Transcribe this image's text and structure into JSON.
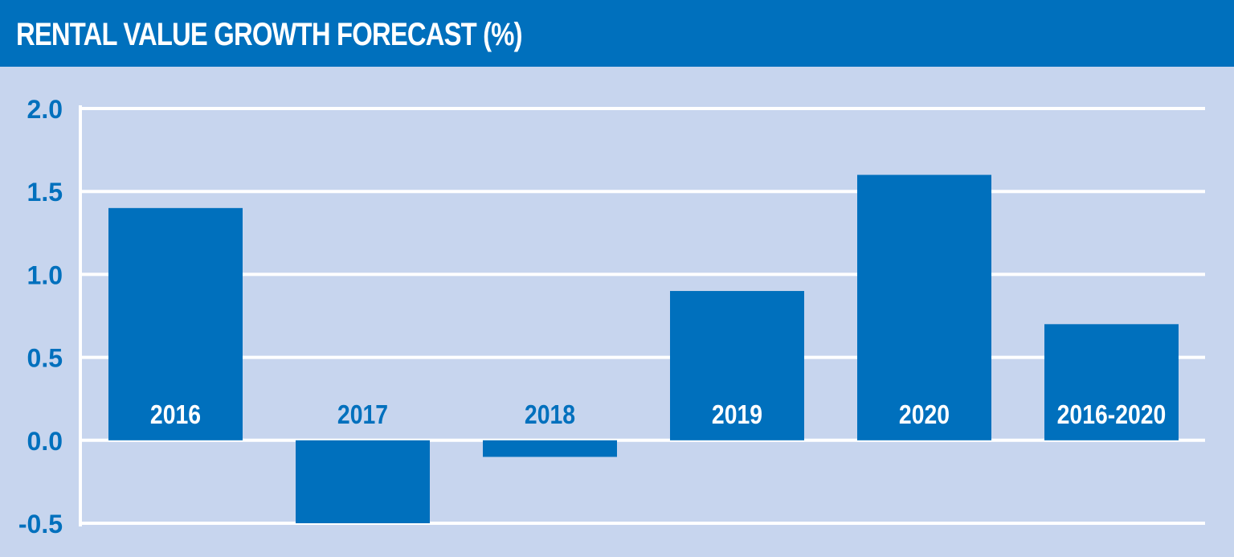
{
  "colors": {
    "header_bg": "#0070bd",
    "plot_bg": "#c7d5ee",
    "bar": "#0070bd",
    "grid": "#ffffff",
    "label_on_bar": "#ffffff",
    "label_off_bar": "#0070bd",
    "tick_text": "#0070bd"
  },
  "chart_data": {
    "type": "bar",
    "title": "RENTAL VALUE GROWTH FORECAST (%)",
    "xlabel": "",
    "ylabel": "",
    "categories": [
      "2016",
      "2017",
      "2018",
      "2019",
      "2020",
      "2016-2020"
    ],
    "values": [
      1.4,
      -0.5,
      -0.1,
      0.9,
      1.6,
      0.7
    ],
    "ylim": [
      -0.5,
      2.0
    ],
    "yticks": [
      "-0.5",
      "0.0",
      "0.5",
      "1.0",
      "1.5",
      "2.0"
    ],
    "ytick_values": [
      -0.5,
      0.0,
      0.5,
      1.0,
      1.5,
      2.0
    ],
    "grid": true,
    "legend": "none",
    "category_labels_position": "inside-bottom-of-bar-area"
  }
}
